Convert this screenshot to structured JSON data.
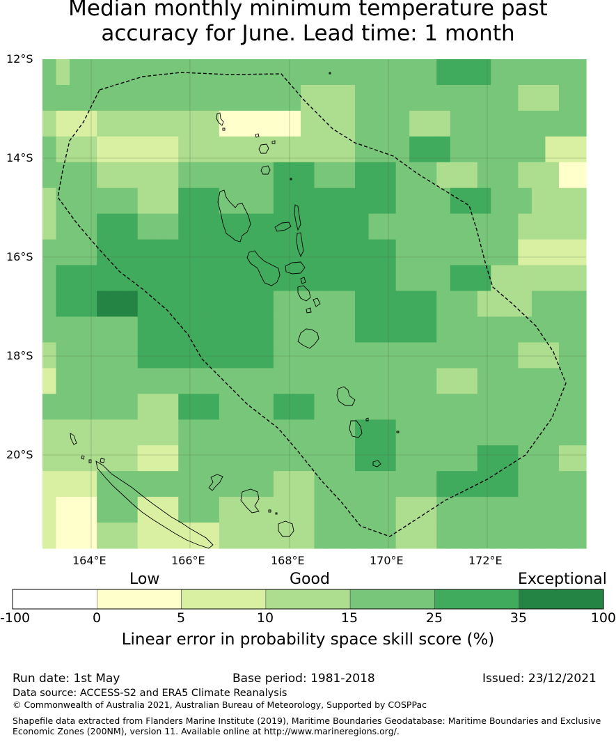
{
  "title": {
    "line1": "Median monthly minimum temperature past",
    "line2": "accuracy for June. Lead time: 1 month"
  },
  "map": {
    "lat_labels": [
      "12°S",
      "14°S",
      "16°S",
      "18°S",
      "20°S"
    ],
    "lon_labels": [
      "164°E",
      "166°E",
      "168°E",
      "170°E",
      "172°E"
    ],
    "colors": {
      "c0": "#ffffff",
      "c1": "#ffffcc",
      "c2": "#d9f0a3",
      "c3": "#addd8e",
      "c4": "#78c679",
      "c5": "#41ab5d",
      "c6": "#238443"
    },
    "grid": [
      [
        4,
        3,
        4,
        4,
        4,
        4,
        4,
        4,
        4,
        4,
        4,
        4,
        4,
        4,
        4,
        4,
        4,
        4,
        4,
        4,
        4,
        4,
        4,
        4,
        4,
        4,
        4,
        4,
        4,
        5,
        5,
        5,
        5,
        4,
        4,
        4,
        4,
        4,
        4,
        4
      ],
      [
        4,
        4,
        4,
        4,
        4,
        4,
        4,
        4,
        4,
        4,
        4,
        4,
        4,
        4,
        4,
        4,
        4,
        4,
        4,
        3,
        3,
        3,
        3,
        4,
        4,
        4,
        4,
        4,
        4,
        4,
        4,
        4,
        4,
        4,
        4,
        3,
        3,
        3,
        4,
        4
      ],
      [
        3,
        2,
        2,
        2,
        3,
        3,
        3,
        3,
        3,
        3,
        3,
        3,
        3,
        1,
        1,
        1,
        1,
        1,
        1,
        3,
        3,
        3,
        3,
        4,
        4,
        4,
        4,
        3,
        3,
        3,
        4,
        4,
        4,
        4,
        4,
        4,
        4,
        4,
        4,
        4
      ],
      [
        4,
        3,
        3,
        3,
        2,
        2,
        2,
        2,
        2,
        2,
        3,
        3,
        3,
        3,
        3,
        3,
        3,
        3,
        3,
        3,
        3,
        3,
        3,
        4,
        4,
        4,
        4,
        5,
        5,
        5,
        4,
        4,
        4,
        4,
        4,
        4,
        4,
        2,
        2,
        2
      ],
      [
        4,
        4,
        4,
        4,
        3,
        3,
        3,
        3,
        3,
        3,
        4,
        4,
        4,
        4,
        4,
        4,
        4,
        5,
        5,
        5,
        4,
        4,
        4,
        5,
        5,
        5,
        4,
        4,
        4,
        3,
        3,
        3,
        4,
        4,
        4,
        3,
        3,
        3,
        1,
        1
      ],
      [
        3,
        4,
        4,
        4,
        4,
        4,
        4,
        3,
        3,
        3,
        5,
        5,
        5,
        4,
        4,
        4,
        4,
        5,
        5,
        5,
        5,
        5,
        5,
        5,
        5,
        5,
        4,
        4,
        4,
        4,
        5,
        5,
        5,
        4,
        4,
        4,
        3,
        3,
        3,
        3
      ],
      [
        3,
        4,
        4,
        4,
        5,
        5,
        5,
        4,
        4,
        4,
        5,
        5,
        5,
        5,
        5,
        5,
        5,
        5,
        5,
        5,
        5,
        5,
        5,
        5,
        4,
        4,
        4,
        4,
        4,
        4,
        4,
        4,
        4,
        4,
        4,
        3,
        3,
        3,
        3,
        3
      ],
      [
        4,
        4,
        4,
        4,
        5,
        5,
        5,
        5,
        5,
        5,
        5,
        5,
        5,
        5,
        5,
        5,
        5,
        5,
        5,
        5,
        5,
        5,
        5,
        5,
        5,
        5,
        4,
        4,
        4,
        4,
        4,
        4,
        4,
        4,
        4,
        2,
        2,
        2,
        2,
        2
      ],
      [
        4,
        5,
        5,
        5,
        5,
        5,
        5,
        5,
        5,
        5,
        5,
        5,
        5,
        5,
        5,
        5,
        5,
        5,
        5,
        5,
        5,
        5,
        5,
        5,
        5,
        5,
        4,
        4,
        4,
        4,
        5,
        5,
        5,
        3,
        3,
        3,
        3,
        3,
        3,
        3
      ],
      [
        4,
        5,
        5,
        5,
        6,
        6,
        6,
        5,
        5,
        5,
        5,
        5,
        5,
        5,
        5,
        5,
        5,
        4,
        4,
        4,
        4,
        4,
        4,
        5,
        5,
        5,
        5,
        5,
        5,
        4,
        4,
        4,
        3,
        3,
        3,
        3,
        4,
        4,
        4,
        4
      ],
      [
        4,
        4,
        4,
        4,
        4,
        4,
        4,
        5,
        5,
        5,
        5,
        5,
        5,
        5,
        5,
        5,
        5,
        4,
        4,
        4,
        4,
        4,
        4,
        5,
        5,
        5,
        5,
        5,
        5,
        4,
        4,
        4,
        4,
        4,
        4,
        4,
        4,
        4,
        4,
        4
      ],
      [
        3,
        4,
        4,
        4,
        4,
        4,
        4,
        5,
        5,
        5,
        5,
        5,
        5,
        5,
        5,
        5,
        5,
        4,
        4,
        4,
        4,
        4,
        4,
        4,
        4,
        4,
        4,
        4,
        4,
        4,
        4,
        4,
        4,
        4,
        4,
        3,
        3,
        3,
        4,
        4
      ],
      [
        2,
        4,
        4,
        4,
        4,
        4,
        4,
        4,
        4,
        4,
        4,
        4,
        4,
        4,
        4,
        4,
        4,
        4,
        4,
        4,
        4,
        4,
        4,
        4,
        4,
        4,
        4,
        4,
        4,
        3,
        3,
        3,
        4,
        4,
        4,
        4,
        4,
        4,
        4,
        4
      ],
      [
        4,
        4,
        4,
        4,
        4,
        4,
        4,
        3,
        3,
        3,
        5,
        5,
        5,
        4,
        4,
        4,
        4,
        5,
        5,
        5,
        4,
        4,
        4,
        4,
        4,
        4,
        4,
        4,
        4,
        4,
        4,
        4,
        4,
        4,
        4,
        4,
        4,
        4,
        4,
        4
      ],
      [
        3,
        3,
        3,
        3,
        3,
        3,
        3,
        3,
        3,
        3,
        4,
        4,
        4,
        4,
        4,
        4,
        4,
        4,
        4,
        4,
        4,
        4,
        4,
        5,
        5,
        5,
        4,
        4,
        4,
        4,
        4,
        4,
        4,
        4,
        4,
        4,
        4,
        4,
        4,
        4
      ],
      [
        3,
        3,
        3,
        3,
        3,
        3,
        3,
        2,
        2,
        2,
        4,
        4,
        4,
        4,
        4,
        4,
        4,
        4,
        4,
        4,
        4,
        4,
        4,
        5,
        5,
        5,
        4,
        4,
        4,
        4,
        4,
        4,
        5,
        5,
        5,
        4,
        4,
        4,
        3,
        3
      ],
      [
        2,
        2,
        2,
        2,
        4,
        4,
        4,
        4,
        4,
        4,
        4,
        4,
        4,
        4,
        4,
        4,
        4,
        3,
        3,
        3,
        4,
        4,
        4,
        4,
        4,
        4,
        4,
        4,
        4,
        5,
        5,
        5,
        5,
        5,
        5,
        4,
        4,
        4,
        4,
        4
      ],
      [
        2,
        1,
        1,
        1,
        4,
        4,
        4,
        2,
        2,
        2,
        4,
        4,
        4,
        3,
        3,
        3,
        3,
        3,
        3,
        3,
        4,
        4,
        4,
        4,
        4,
        4,
        3,
        3,
        3,
        4,
        4,
        4,
        4,
        4,
        4,
        4,
        4,
        4,
        4,
        4
      ],
      [
        2,
        1,
        1,
        1,
        3,
        3,
        3,
        2,
        2,
        2,
        2,
        2,
        2,
        3,
        3,
        3,
        3,
        3,
        3,
        3,
        4,
        4,
        4,
        4,
        4,
        4,
        3,
        3,
        3,
        4,
        4,
        4,
        4,
        4,
        4,
        4,
        4,
        4,
        4,
        4
      ]
    ]
  },
  "colorbar": {
    "category_labels": [
      "Low",
      "Good",
      "Exceptional"
    ],
    "tick_labels": [
      "-100",
      "0",
      "5",
      "10",
      "15",
      "25",
      "35",
      "100"
    ],
    "colors": [
      "#ffffff",
      "#ffffcc",
      "#d9f0a3",
      "#addd8e",
      "#78c679",
      "#41ab5d",
      "#238443"
    ],
    "label": "Linear error in probability space skill score (%)"
  },
  "footer": {
    "run_date": "Run date: 1st May",
    "base_period": "Base period: 1981-2018",
    "issued": "Issued: 23/12/2021",
    "data_source": "Data source: ACCESS-S2 and ERA5 Climate Reanalysis",
    "copyright": "© Commonwealth of Australia 2021, Australian Bureau of Meteorology, Supported by COSPPac",
    "shapefile_line1": "Shapefile data extracted from Flanders Marine Institute (2019), Maritime Boundaries Geodatabase: Maritime Boundaries and Exclusive",
    "shapefile_line2": "Economic Zones (200NM), version 11. Available online at http://www.marineregions.org/."
  }
}
